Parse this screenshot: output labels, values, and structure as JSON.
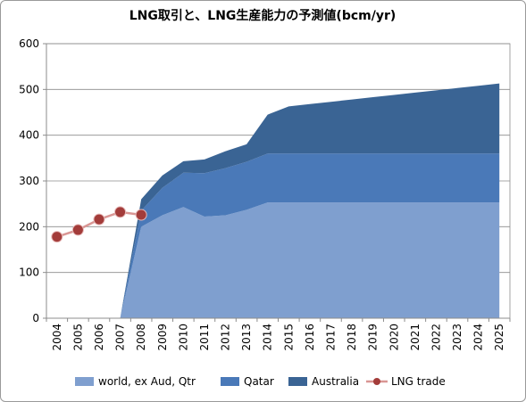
{
  "chart_data": {
    "type": "area",
    "title": "LNG取引と、LNG生産能力の予測値(bcm/yr)",
    "xlabel": "",
    "ylabel": "",
    "ylim": [
      0,
      600
    ],
    "yticks": [
      0,
      100,
      200,
      300,
      400,
      500,
      600
    ],
    "x": [
      "2004",
      "2005",
      "2006",
      "2007",
      "2008",
      "2009",
      "2010",
      "2011",
      "2012",
      "2013",
      "2014",
      "2015",
      "2016",
      "2017",
      "2018",
      "2019",
      "2020",
      "2021",
      "2022",
      "2023",
      "2024",
      "2025"
    ],
    "stacked": true,
    "grid": true,
    "legend_position": "bottom",
    "series": [
      {
        "name": "world, ex Aud, Qtr",
        "kind": "area",
        "color": "#7f9fcf",
        "values": [
          null,
          null,
          null,
          0,
          200,
          225,
          243,
          222,
          225,
          237,
          253,
          253,
          253,
          253,
          253,
          253,
          253,
          253,
          253,
          253,
          253,
          253
        ]
      },
      {
        "name": "Qatar",
        "kind": "area",
        "color": "#4a79b8",
        "values": [
          null,
          null,
          null,
          0,
          35,
          60,
          75,
          95,
          103,
          105,
          107,
          107,
          107,
          107,
          107,
          107,
          107,
          107,
          107,
          107,
          107,
          107
        ]
      },
      {
        "name": "Australia",
        "kind": "area",
        "color": "#3a6494",
        "values": [
          null,
          null,
          null,
          0,
          25,
          27,
          25,
          30,
          37,
          38,
          85,
          103,
          108,
          113,
          118,
          123,
          128,
          133,
          138,
          143,
          148,
          153
        ]
      },
      {
        "name": "LNG trade",
        "kind": "line",
        "color": "#c0504d",
        "marker_color": "#a33c3a",
        "values": [
          178,
          193,
          216,
          232,
          226,
          null,
          null,
          null,
          null,
          null,
          null,
          null,
          null,
          null,
          null,
          null,
          null,
          null,
          null,
          null,
          null,
          null
        ]
      }
    ]
  }
}
